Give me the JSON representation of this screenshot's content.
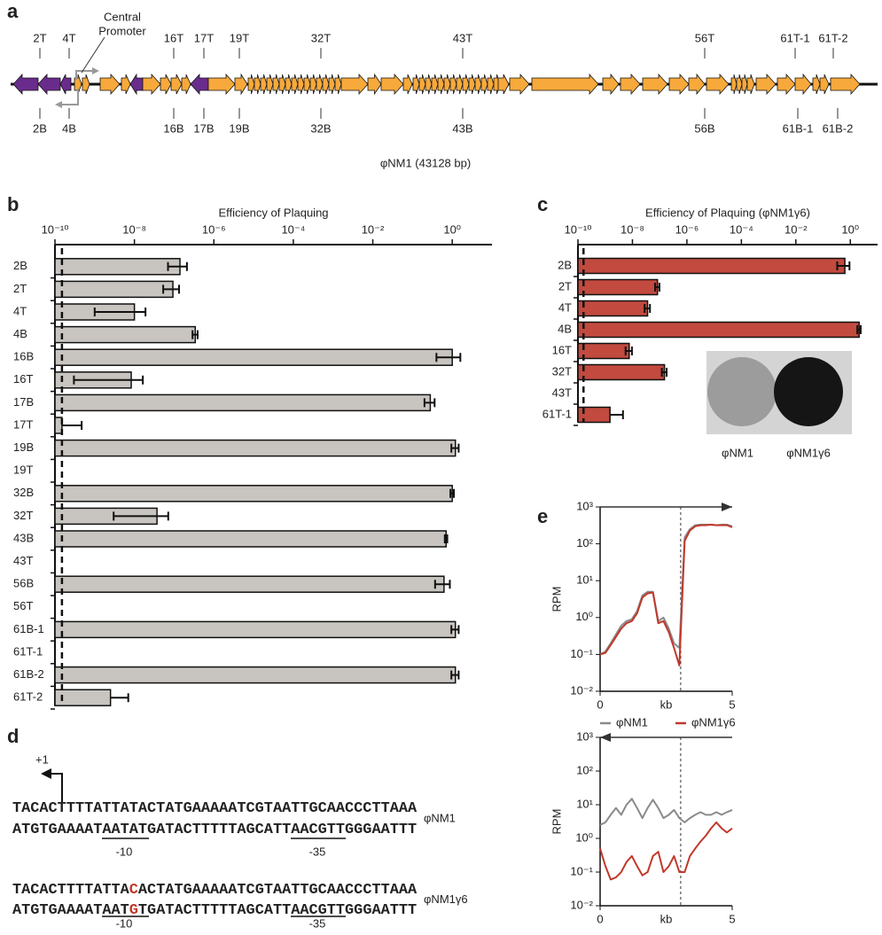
{
  "panel_labels": [
    "a",
    "b",
    "c",
    "d",
    "e"
  ],
  "genome_map": {
    "top_labels": [
      "2T",
      "4T",
      "16T",
      "17T",
      "19T",
      "32T",
      "43T",
      "56T",
      "61T-1",
      "61T-2"
    ],
    "bottom_labels": [
      "2B",
      "4B",
      "16B",
      "17B",
      "19B",
      "32B",
      "43B",
      "56B",
      "61B-1",
      "61B-2"
    ],
    "promoter_label": [
      "Central",
      "Promoter"
    ],
    "caption": "φNM1 (43128 bp)"
  },
  "chart_data": [
    {
      "type": "bar",
      "orientation": "horizontal",
      "title": "Efficiency of Plaquing",
      "categories": [
        "2B",
        "2T",
        "4T",
        "4B",
        "16B",
        "16T",
        "17B",
        "17T",
        "19B",
        "19T",
        "32B",
        "32T",
        "43B",
        "43T",
        "56B",
        "56T",
        "61B-1",
        "61T-1",
        "61B-2",
        "61T-2"
      ],
      "values": [
        1.4e-07,
        9.3e-08,
        1e-08,
        3.4e-07,
        1.0,
        8.3e-09,
        0.28,
        1.5e-10,
        1.2,
        null,
        1.0,
        3.7e-08,
        0.7,
        null,
        0.62,
        null,
        1.2,
        null,
        1.2,
        2.5e-09
      ],
      "errors": [
        7e-08,
        4e-08,
        9e-09,
        5e-08,
        0.6,
        8e-09,
        0.08,
        3.2e-10,
        0.25,
        null,
        0.1,
        3.4e-08,
        0.05,
        null,
        0.25,
        null,
        0.25,
        null,
        0.25,
        4.5e-09
      ],
      "color": "#c8c4c0",
      "xscale": "log",
      "xlim": [
        1e-10,
        10
      ],
      "xticks": [
        {
          "value": 1e-10,
          "label": "10⁻¹⁰"
        },
        {
          "value": 1e-08,
          "label": "10⁻⁸"
        },
        {
          "value": 1e-06,
          "label": "10⁻⁶"
        },
        {
          "value": 0.0001,
          "label": "10⁻⁴"
        },
        {
          "value": 0.01,
          "label": "10⁻²"
        },
        {
          "value": 1,
          "label": "10⁰"
        }
      ],
      "threshold": 1.5e-10
    },
    {
      "type": "bar",
      "orientation": "horizontal",
      "title": "Efficiency of Plaquing (φNM1γ6)",
      "categories": [
        "2B",
        "2T",
        "4T",
        "4B",
        "16T",
        "32T",
        "43T",
        "61T-1"
      ],
      "values": [
        0.63,
        8.3e-08,
        3.6e-08,
        2.1,
        7.6e-09,
        1.5e-07,
        null,
        1.5e-09
      ],
      "errors": [
        0.3,
        1.5e-08,
        8e-09,
        0.3,
        2e-09,
        3e-08,
        null,
        3e-09
      ],
      "color": "#c24a3f",
      "xscale": "log",
      "xlim": [
        1e-10,
        10
      ],
      "xticks": [
        {
          "value": 1e-10,
          "label": "10⁻¹⁰"
        },
        {
          "value": 1e-08,
          "label": "10⁻⁸"
        },
        {
          "value": 1e-06,
          "label": "10⁻⁶"
        },
        {
          "value": 0.0001,
          "label": "10⁻⁴"
        },
        {
          "value": 0.01,
          "label": "10⁻²"
        },
        {
          "value": 1,
          "label": "10⁰"
        }
      ],
      "threshold": 1.6e-10,
      "inset_labels": [
        "φNM1",
        "φNM1γ6"
      ]
    },
    {
      "type": "line",
      "xlabel": "kb",
      "ylabel": "RPM",
      "arrow": "right",
      "x": [
        0,
        0.2,
        0.4,
        0.6,
        0.8,
        1.0,
        1.2,
        1.4,
        1.6,
        1.8,
        2.0,
        2.2,
        2.4,
        2.6,
        2.8,
        3.0,
        3.2,
        3.4,
        3.6,
        3.8,
        4.0,
        4.2,
        4.4,
        4.6,
        4.8,
        5.0
      ],
      "series": [
        {
          "name": "φNM1",
          "color": "#8a8a8a",
          "values": [
            0.1,
            0.12,
            0.2,
            0.35,
            0.6,
            0.8,
            0.9,
            1.5,
            4,
            5,
            5,
            0.8,
            1,
            0.5,
            0.2,
            0.15,
            150,
            250,
            320,
            330,
            330,
            330,
            320,
            330,
            330,
            300
          ]
        },
        {
          "name": "φNM1γ6",
          "color": "#c0392b",
          "values": [
            0.1,
            0.11,
            0.18,
            0.3,
            0.5,
            0.7,
            0.8,
            1.3,
            3.5,
            4.5,
            4.8,
            0.7,
            0.8,
            0.4,
            0.15,
            0.05,
            120,
            230,
            300,
            320,
            320,
            330,
            320,
            320,
            320,
            280
          ]
        }
      ],
      "xlim": [
        0,
        5
      ],
      "xticks": [
        0,
        5
      ],
      "yscale": "log",
      "ylim": [
        0.01,
        1000
      ],
      "yticks": [
        {
          "value": 0.01,
          "label": "10⁻²"
        },
        {
          "value": 0.1,
          "label": "10⁻¹"
        },
        {
          "value": 1,
          "label": "10⁰"
        },
        {
          "value": 10,
          "label": "10¹"
        },
        {
          "value": 100,
          "label": "10²"
        },
        {
          "value": 1000,
          "label": "10³"
        }
      ],
      "reference_x": 3.05,
      "legend": "below"
    },
    {
      "type": "line",
      "xlabel": "kb",
      "ylabel": "RPM",
      "arrow": "left",
      "x": [
        0,
        0.2,
        0.4,
        0.6,
        0.8,
        1.0,
        1.2,
        1.4,
        1.6,
        1.8,
        2.0,
        2.2,
        2.4,
        2.6,
        2.8,
        3.0,
        3.2,
        3.4,
        3.6,
        3.8,
        4.0,
        4.2,
        4.4,
        4.6,
        4.8,
        5.0
      ],
      "series": [
        {
          "color": "#8a8a8a",
          "values": [
            2.5,
            3,
            5,
            8,
            5,
            10,
            15,
            8,
            4,
            8,
            14,
            8,
            4,
            5,
            7,
            4,
            3,
            4,
            5,
            6,
            5,
            5,
            6,
            5,
            6,
            7
          ]
        },
        {
          "color": "#c0392b",
          "values": [
            0.5,
            0.15,
            0.06,
            0.07,
            0.1,
            0.2,
            0.3,
            0.15,
            0.08,
            0.1,
            0.3,
            0.4,
            0.1,
            0.15,
            0.3,
            0.1,
            0.1,
            0.3,
            0.5,
            0.8,
            1.2,
            2,
            3,
            2,
            1.5,
            2
          ]
        }
      ],
      "xlim": [
        0,
        5
      ],
      "xticks": [
        0,
        5
      ],
      "yscale": "log",
      "ylim": [
        0.01,
        1000
      ],
      "yticks": [
        {
          "value": 0.01,
          "label": "10⁻²"
        },
        {
          "value": 0.1,
          "label": "10⁻¹"
        },
        {
          "value": 1,
          "label": "10⁰"
        },
        {
          "value": 10,
          "label": "10¹"
        },
        {
          "value": 100,
          "label": "10²"
        },
        {
          "value": 1000,
          "label": "10³"
        }
      ],
      "reference_x": 3.05
    }
  ],
  "sequences": {
    "start_label": "+1",
    "box_labels": [
      "-10",
      "-35"
    ],
    "rows": [
      {
        "name": "φNM1",
        "top": [
          "TACACTTTTATTATACTATGAAAAATCGTAATTGCAACCCTTAAA"
        ],
        "bottom": [
          "ATGTGAAAATAATATGATACTTTTTAGCATTAACGTTGGGAATTT"
        ]
      },
      {
        "name": "φNM1γ6",
        "top": [
          "TACACTTTTATTA",
          "C",
          "ACTATGAAAAATCGTAATTGCAACCCTTAAA"
        ],
        "bottom": [
          "ATGTGAAAATAAT",
          "G",
          "TGATACTTTTTAGCATTAACGTTGGGAATTT"
        ]
      }
    ]
  }
}
